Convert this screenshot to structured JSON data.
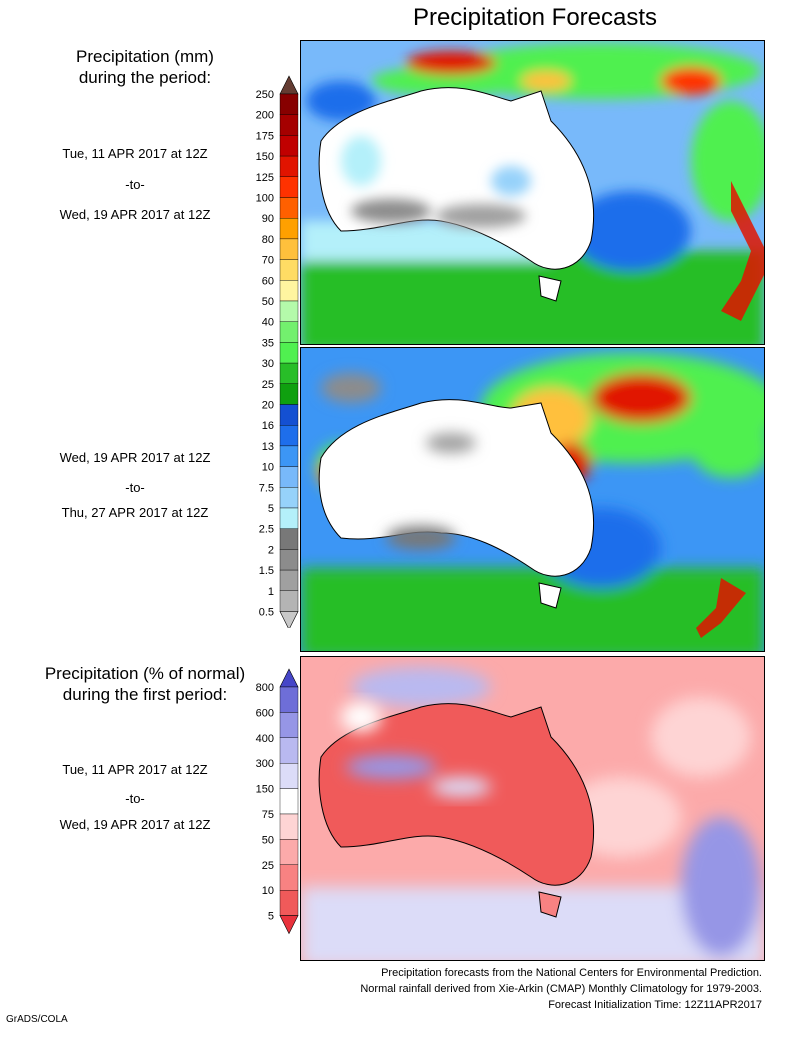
{
  "title": "Precipitation Forecasts",
  "section_1": {
    "heading_line1": "Precipitation (mm)",
    "heading_line2": "during the period:"
  },
  "period_1": {
    "start": "Tue, 11 APR 2017 at 12Z",
    "sep": "-to-",
    "end": "Wed, 19 APR 2017 at 12Z"
  },
  "period_2": {
    "start": "Wed, 19 APR 2017 at 12Z",
    "sep": "-to-",
    "end": "Thu, 27 APR 2017 at 12Z"
  },
  "section_2": {
    "heading_line1": "Precipitation (% of normal)",
    "heading_line2": "during the first period:"
  },
  "period_3": {
    "start": "Tue, 11 APR 2017 at 12Z",
    "sep": "-to-",
    "end": "Wed, 19 APR 2017 at 12Z"
  },
  "legend_mm": {
    "labels": [
      "250",
      "200",
      "175",
      "150",
      "125",
      "100",
      "90",
      "80",
      "70",
      "60",
      "50",
      "40",
      "35",
      "30",
      "25",
      "20",
      "16",
      "13",
      "10",
      "7.5",
      "5",
      "2.5",
      "2",
      "1.5",
      "1",
      "0.5"
    ],
    "colors": [
      "#c8c8c8",
      "#b4b4b4",
      "#a0a0a0",
      "#8c8c8c",
      "#787878",
      "#b4f0fa",
      "#96d2fa",
      "#78b9fa",
      "#3c96f5",
      "#1e6eeb",
      "#1450d2",
      "#0fa00f",
      "#28be28",
      "#50f050",
      "#73f06e",
      "#b4faaa",
      "#fff5a0",
      "#ffdc64",
      "#ffc03c",
      "#ffa000",
      "#ff6000",
      "#ff3200",
      "#e11400",
      "#c00000",
      "#a50000",
      "#870000",
      "#643c32"
    ]
  },
  "legend_pct": {
    "labels": [
      "800",
      "600",
      "400",
      "300",
      "150",
      "75",
      "50",
      "25",
      "10",
      "5"
    ],
    "colors": [
      "#e8323c",
      "#f05a5a",
      "#f88282",
      "#fcaaaa",
      "#fed4d4",
      "#ffffff",
      "#dcdcf8",
      "#b9b9f0",
      "#9696e6",
      "#6e6ed8",
      "#4646c8"
    ]
  },
  "footer": {
    "line1": "Precipitation forecasts from the National Centers for Environmental Prediction.",
    "line2": "Normal rainfall derived from Xie-Arkin (CMAP) Monthly Climatology for 1979-2003.",
    "line3": "Forecast Initialization Time: 12Z11APR2017"
  },
  "brand": "GrADS/COLA"
}
